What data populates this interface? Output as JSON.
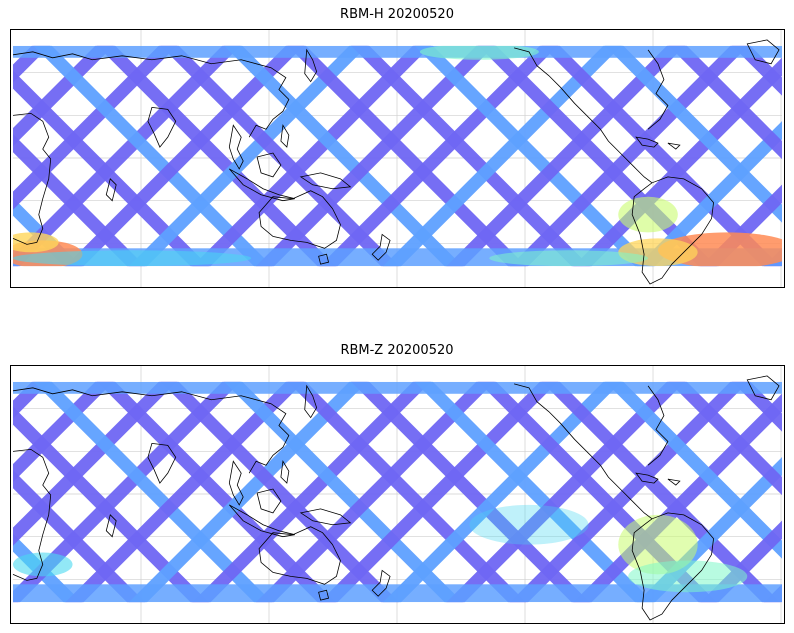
{
  "panels": [
    {
      "id": "top",
      "title": "RBM-H 20200520",
      "swath_base_color": "#6f66f3",
      "swath_alt_color": "#5ea0ff",
      "high_region_colors": [
        "#49d8f0",
        "#7ef7c8",
        "#c9fb6f",
        "#ffd65a",
        "#ff8b55"
      ],
      "coastline_color": "#000000",
      "gridline_color": "#cfcfcf"
    },
    {
      "id": "bottom",
      "title": "RBM-Z 20200520",
      "swath_base_color": "#6f66f3",
      "swath_alt_color": "#5ea0ff",
      "high_region_colors": [
        "#49d8f0",
        "#7ef7c8",
        "#c9fb6f"
      ],
      "coastline_color": "#000000",
      "gridline_color": "#cfcfcf"
    }
  ]
}
